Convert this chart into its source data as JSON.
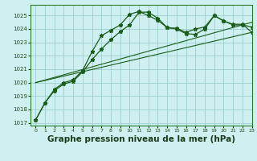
{
  "background_color": "#cff0f0",
  "grid_color": "#9ecece",
  "line_color": "#1a5c1a",
  "title": "Graphe pression niveau de la mer (hPa)",
  "title_fontsize": 7.5,
  "xlim": [
    -0.5,
    23
  ],
  "ylim": [
    1016.8,
    1025.8
  ],
  "yticks": [
    1017,
    1018,
    1019,
    1020,
    1021,
    1022,
    1023,
    1024,
    1025
  ],
  "xticks": [
    0,
    1,
    2,
    3,
    4,
    5,
    6,
    7,
    8,
    9,
    10,
    11,
    12,
    13,
    14,
    15,
    16,
    17,
    18,
    19,
    20,
    21,
    22,
    23
  ],
  "series": [
    {
      "x": [
        0,
        1,
        2,
        3,
        4,
        5,
        6,
        7,
        8,
        9,
        10,
        11,
        12,
        13,
        14,
        15,
        16,
        17,
        18,
        19,
        20,
        21,
        22,
        23
      ],
      "y": [
        1017.2,
        1018.5,
        1019.4,
        1019.9,
        1020.1,
        1020.8,
        1021.7,
        1022.5,
        1023.2,
        1023.8,
        1024.3,
        1025.25,
        1025.25,
        1024.8,
        1024.1,
        1024.0,
        1023.65,
        1023.6,
        1024.0,
        1025.0,
        1024.6,
        1024.3,
        1024.3,
        1024.15
      ],
      "style": "-",
      "marker": "*",
      "markersize": 3.5,
      "linewidth": 0.9
    },
    {
      "x": [
        0,
        1,
        2,
        3,
        4,
        5,
        6,
        7,
        8,
        9,
        10,
        11,
        12,
        13,
        14,
        15,
        16,
        17,
        18,
        19,
        20,
        21,
        22,
        23
      ],
      "y": [
        1017.2,
        1018.5,
        1019.5,
        1020.0,
        1020.2,
        1020.9,
        1022.3,
        1023.5,
        1023.9,
        1024.3,
        1025.1,
        1025.3,
        1025.0,
        1024.65,
        1024.1,
        1024.05,
        1023.75,
        1024.0,
        1024.15,
        1025.0,
        1024.6,
        1024.35,
        1024.35,
        1023.75
      ],
      "style": "-",
      "marker": "*",
      "markersize": 3.5,
      "linewidth": 0.9
    },
    {
      "x": [
        0,
        23
      ],
      "y": [
        1020.0,
        1023.75
      ],
      "style": "-",
      "marker": null,
      "linewidth": 0.8
    },
    {
      "x": [
        0,
        23
      ],
      "y": [
        1020.0,
        1024.5
      ],
      "style": "-",
      "marker": null,
      "linewidth": 0.8
    }
  ]
}
